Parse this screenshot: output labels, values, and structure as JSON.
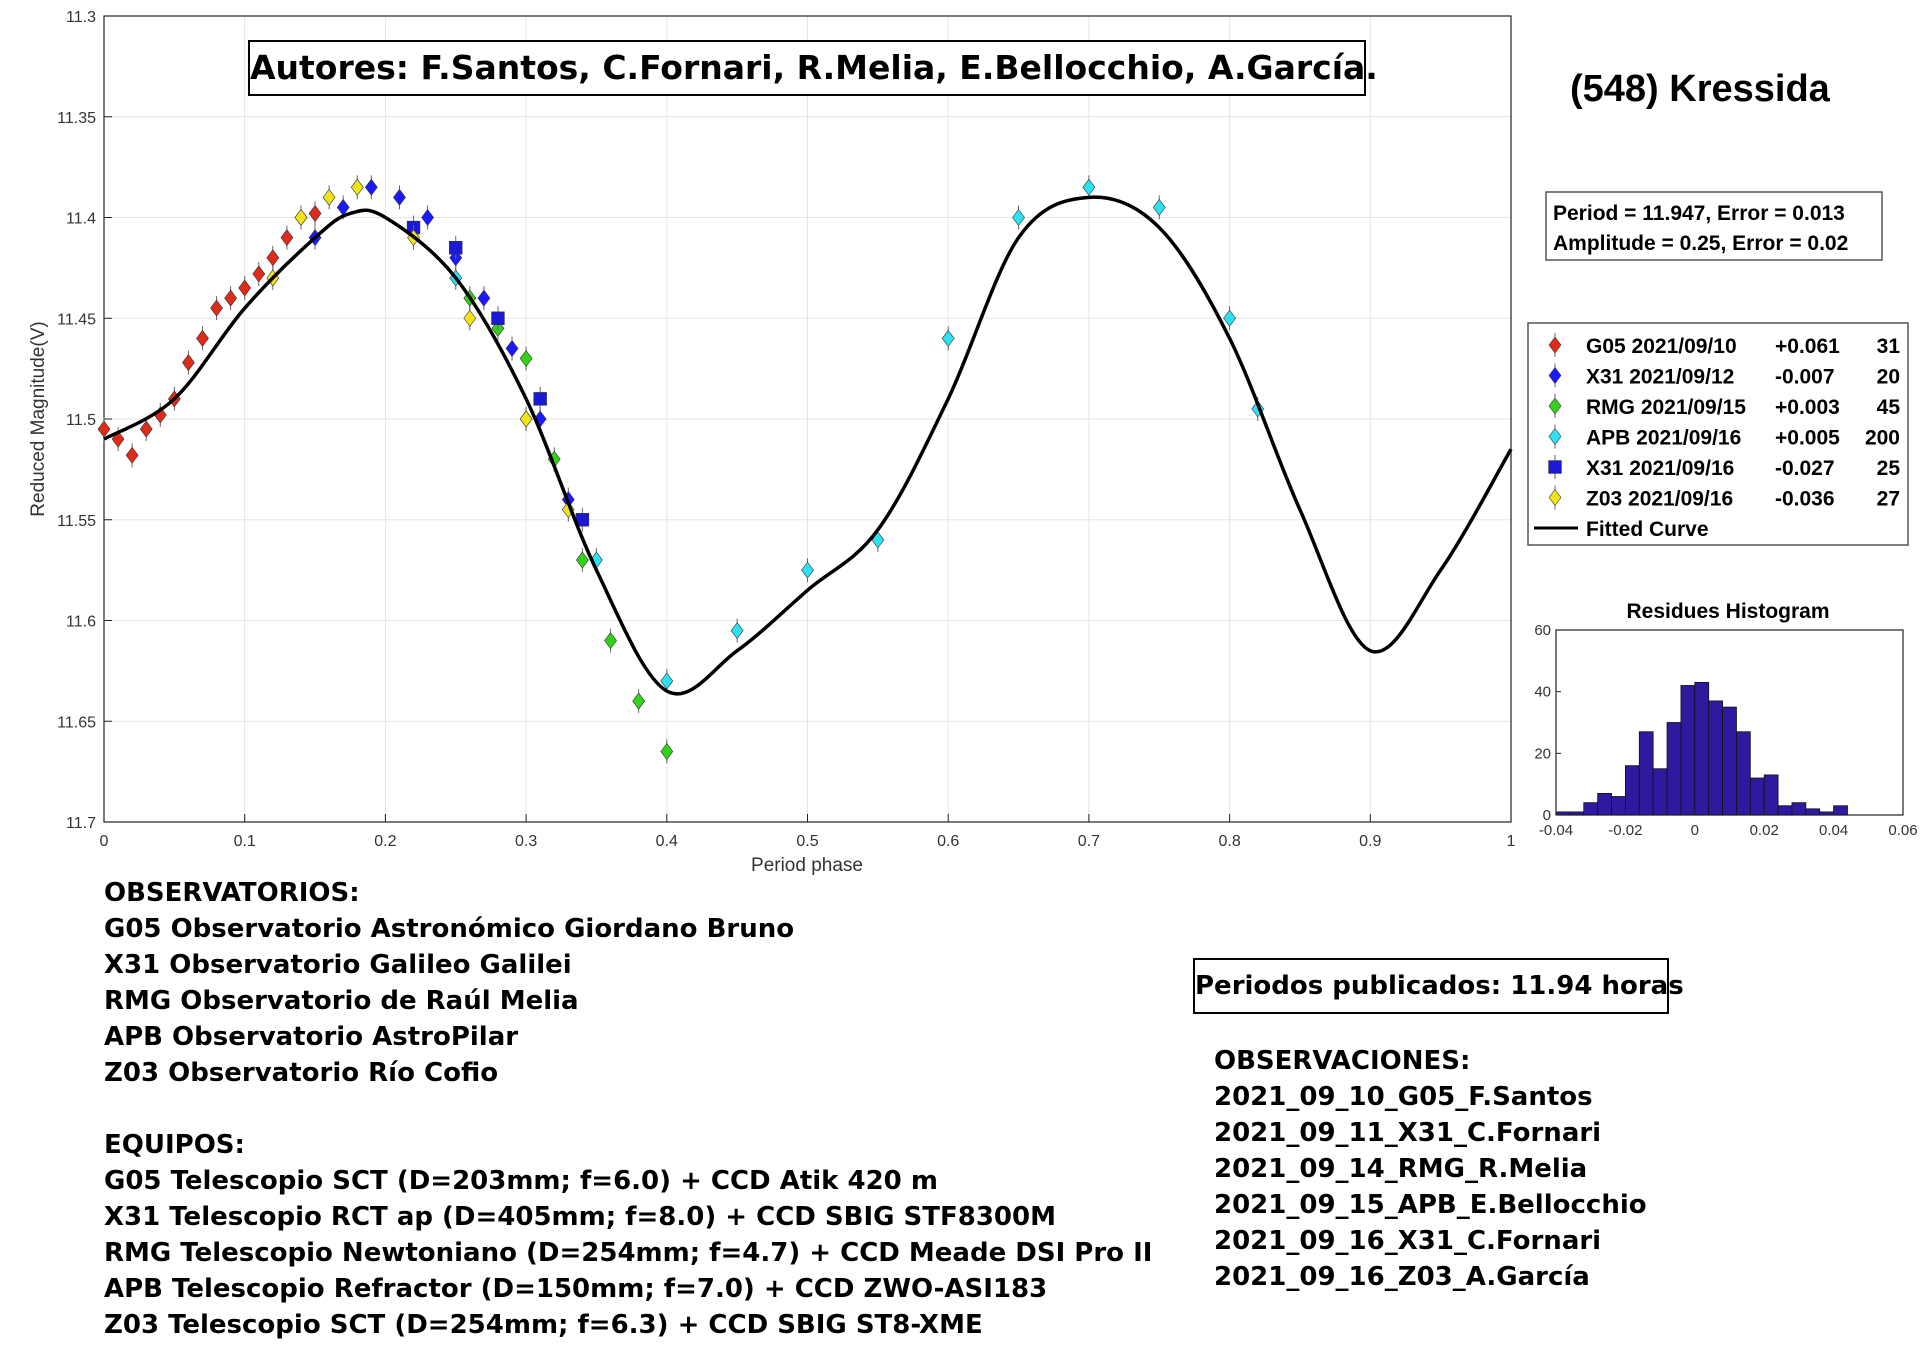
{
  "authors": "Autores: F.Santos, C.Fornari, R.Melia, E.Bellocchio, A.García.",
  "asteroid": "(548) Kressida",
  "fit": {
    "period_line": "Period =  11.947, Error = 0.013",
    "amplitude_line": "Amplitude = 0.25, Error = 0.02"
  },
  "legend": [
    {
      "label": "G05 2021/09/10",
      "offset": "+0.061",
      "count": "31",
      "color": "#e02a1a",
      "marker": "diamond"
    },
    {
      "label": "X31 2021/09/12",
      "offset": "-0.007",
      "count": "20",
      "color": "#1a1aff",
      "marker": "diamond"
    },
    {
      "label": "RMG 2021/09/15",
      "offset": "+0.003",
      "count": "45",
      "color": "#33d11a",
      "marker": "diamond"
    },
    {
      "label": "APB 2021/09/16",
      "offset": "+0.005",
      "count": "200",
      "color": "#2ee0f0",
      "marker": "diamond"
    },
    {
      "label": "X31 2021/09/16",
      "offset": "-0.027",
      "count": "25",
      "color": "#1a1ad6",
      "marker": "square"
    },
    {
      "label": "Z03 2021/09/16",
      "offset": "-0.036",
      "count": "27",
      "color": "#f2e21a",
      "marker": "diamond"
    },
    {
      "label": "Fitted Curve",
      "offset": "",
      "count": "",
      "color": "#000000",
      "marker": "line"
    }
  ],
  "chart_data": [
    {
      "type": "scatter",
      "title": "",
      "xlabel": "Period phase",
      "ylabel": "Reduced Magnitude(V)",
      "xlim": [
        0,
        1
      ],
      "ylim": [
        11.3,
        11.7
      ],
      "y_reversed": true,
      "xticks": [
        "0",
        "0.1",
        "0.2",
        "0.3",
        "0.4",
        "0.5",
        "0.6",
        "0.7",
        "0.8",
        "0.9",
        "1"
      ],
      "yticks": [
        "11.3",
        "11.35",
        "11.4",
        "11.45",
        "11.5",
        "11.55",
        "11.6",
        "11.65",
        "11.7"
      ],
      "grid": true,
      "series": [
        {
          "name": "G05 2021/09/10",
          "x": [
            0.0,
            0.01,
            0.02,
            0.03,
            0.04,
            0.05,
            0.06,
            0.07,
            0.08,
            0.09,
            0.1,
            0.11,
            0.12,
            0.13,
            0.14,
            0.15
          ],
          "y": [
            11.505,
            11.51,
            11.518,
            11.505,
            11.498,
            11.49,
            11.472,
            11.46,
            11.445,
            11.44,
            11.435,
            11.428,
            11.42,
            11.41,
            11.4,
            11.398
          ]
        },
        {
          "name": "X31 2021/09/12",
          "x": [
            0.15,
            0.17,
            0.19,
            0.21,
            0.23,
            0.25,
            0.27,
            0.29,
            0.31,
            0.33
          ],
          "y": [
            11.41,
            11.395,
            11.385,
            11.39,
            11.4,
            11.42,
            11.44,
            11.465,
            11.5,
            11.54
          ]
        },
        {
          "name": "RMG 2021/09/15",
          "x": [
            0.26,
            0.28,
            0.3,
            0.32,
            0.34,
            0.36,
            0.38,
            0.4
          ],
          "y": [
            11.44,
            11.455,
            11.47,
            11.52,
            11.57,
            11.61,
            11.64,
            11.665
          ]
        },
        {
          "name": "APB 2021/09/16",
          "x": [
            0.25,
            0.3,
            0.35,
            0.4,
            0.45,
            0.5,
            0.55,
            0.6,
            0.65,
            0.7,
            0.75,
            0.8,
            0.82
          ],
          "y": [
            11.43,
            11.5,
            11.57,
            11.63,
            11.605,
            11.575,
            11.56,
            11.46,
            11.4,
            11.385,
            11.395,
            11.45,
            11.495
          ]
        },
        {
          "name": "X31 2021/09/16",
          "x": [
            0.22,
            0.25,
            0.28,
            0.31,
            0.34
          ],
          "y": [
            11.405,
            11.415,
            11.45,
            11.49,
            11.55
          ]
        },
        {
          "name": "Z03 2021/09/16",
          "x": [
            0.12,
            0.14,
            0.16,
            0.18,
            0.22,
            0.26,
            0.3,
            0.33
          ],
          "y": [
            11.43,
            11.4,
            11.39,
            11.385,
            11.41,
            11.45,
            11.5,
            11.545
          ]
        }
      ],
      "fitted_curve": {
        "name": "Fitted Curve",
        "x": [
          0.0,
          0.05,
          0.1,
          0.15,
          0.175,
          0.2,
          0.25,
          0.3,
          0.35,
          0.4,
          0.45,
          0.5,
          0.55,
          0.6,
          0.65,
          0.7,
          0.75,
          0.8,
          0.85,
          0.9,
          0.95,
          1.0
        ],
        "y": [
          11.51,
          11.49,
          11.445,
          11.41,
          11.398,
          11.4,
          11.43,
          11.49,
          11.575,
          11.635,
          11.615,
          11.585,
          11.555,
          11.49,
          11.41,
          11.39,
          11.405,
          11.46,
          11.545,
          11.615,
          11.575,
          11.515
        ]
      }
    },
    {
      "type": "bar",
      "title": "Residues Histogram",
      "xlabel": "",
      "ylabel": "",
      "xlim": [
        -0.04,
        0.06
      ],
      "ylim": [
        0,
        60
      ],
      "xticks": [
        "-0.04",
        "-0.02",
        "0",
        "0.02",
        "0.04",
        "0.06"
      ],
      "yticks": [
        "0",
        "20",
        "40",
        "60"
      ],
      "color": "#2e1a9e",
      "bin_width": 0.004,
      "bin_centers": [
        -0.038,
        -0.034,
        -0.03,
        -0.026,
        -0.022,
        -0.018,
        -0.014,
        -0.01,
        -0.006,
        -0.002,
        0.002,
        0.006,
        0.01,
        0.014,
        0.018,
        0.022,
        0.026,
        0.03,
        0.034,
        0.038,
        0.042
      ],
      "values": [
        1,
        1,
        4,
        7,
        6,
        16,
        27,
        15,
        30,
        42,
        43,
        37,
        35,
        27,
        12,
        13,
        3,
        4,
        2,
        1,
        3
      ]
    }
  ],
  "observatorios": {
    "heading": "OBSERVATORIOS:",
    "items": [
      "G05 Observatorio Astronómico Giordano Bruno",
      "X31 Observatorio Galileo Galilei",
      "RMG Observatorio de Raúl Melia",
      "APB Observatorio AstroPilar",
      "Z03 Observatorio Río Cofio"
    ]
  },
  "equipos": {
    "heading": "EQUIPOS:",
    "items": [
      "G05 Telescopio SCT (D=203mm; f=6.0) + CCD Atik 420 m",
      "X31 Telescopio RCT ap (D=405mm; f=8.0) + CCD SBIG STF8300M",
      "RMG Telescopio Newtoniano (D=254mm; f=4.7) + CCD Meade DSI Pro II",
      "APB Telescopio Refractor (D=150mm; f=7.0) + CCD ZWO-ASI183",
      "Z03 Telescopio SCT (D=254mm; f=6.3) + CCD SBIG ST8-XME"
    ]
  },
  "periodos": "Periodos publicados: 11.94 horas",
  "observaciones": {
    "heading": "OBSERVACIONES:",
    "items": [
      "2021_09_10_G05_F.Santos",
      "2021_09_11_X31_C.Fornari",
      "2021_09_14_RMG_R.Melia",
      "2021_09_15_APB_E.Bellocchio",
      "2021_09_16_X31_C.Fornari",
      "2021_09_16_Z03_A.García"
    ]
  }
}
